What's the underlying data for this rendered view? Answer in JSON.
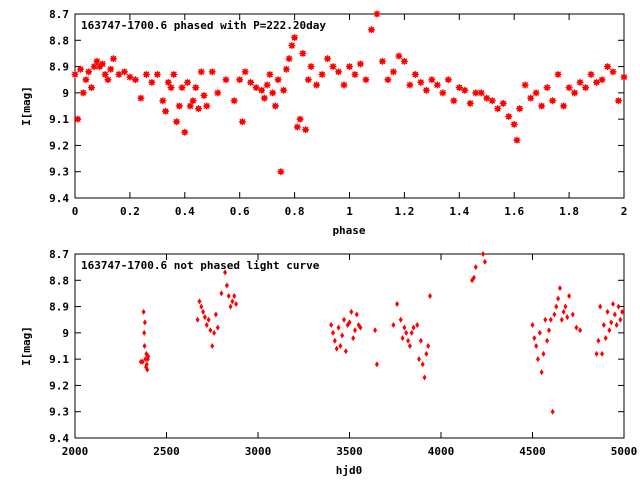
{
  "charts": [
    {
      "title": "163747-1700.6 phased with P=222.20day",
      "xlabel": "phase",
      "ylabel": "I[mag]"
    },
    {
      "title": "163747-1700.6 not phased light curve",
      "xlabel": "hjd0",
      "ylabel": "I[mag]"
    }
  ],
  "colors": {
    "points": "#ff0000",
    "axes": "#000000",
    "background": "#ffffff"
  },
  "chart_data": [
    {
      "type": "scatter",
      "title": "163747-1700.6 phased with P=222.20day",
      "xlabel": "phase",
      "ylabel": "I[mag]",
      "xlim": [
        0,
        2
      ],
      "ylim": [
        9.4,
        8.7
      ],
      "y_inverted": true,
      "grid": false,
      "legend": "none",
      "x_ticks": [
        0,
        0.2,
        0.4,
        0.6,
        0.8,
        1,
        1.2,
        1.4,
        1.6,
        1.8,
        2
      ],
      "x_tick_labels": [
        "0",
        "0.2",
        "0.4",
        "0.6",
        "0.8",
        "1",
        "1.2",
        "1.4",
        "1.6",
        "1.8",
        "2"
      ],
      "y_ticks": [
        8.7,
        8.8,
        8.9,
        9,
        9.1,
        9.2,
        9.3,
        9.4
      ],
      "y_tick_labels": [
        "8.7",
        "8.8",
        "8.9",
        "9",
        "9.1",
        "9.2",
        "9.3",
        "9.4"
      ],
      "marker": "asterisk",
      "series": [
        {
          "x": [
            0.0,
            0.01,
            0.02,
            0.03,
            0.04,
            0.05,
            0.06,
            0.07,
            0.08,
            0.09,
            0.1,
            0.11,
            0.12,
            0.13,
            0.14,
            0.16,
            0.18,
            0.2,
            0.22,
            0.24,
            0.26,
            0.28,
            0.3,
            0.32,
            0.33,
            0.34,
            0.35,
            0.36,
            0.37,
            0.38,
            0.39,
            0.4,
            0.41,
            0.42,
            0.43,
            0.44,
            0.45,
            0.46,
            0.47,
            0.48,
            0.5,
            0.52,
            0.55,
            0.58,
            0.6,
            0.61,
            0.62,
            0.64,
            0.66,
            0.68,
            0.69,
            0.7,
            0.71,
            0.72,
            0.73,
            0.74,
            0.75,
            0.76,
            0.77,
            0.78,
            0.79,
            0.8,
            0.81,
            0.82,
            0.83,
            0.84,
            0.85,
            0.86,
            0.88,
            0.9,
            0.92,
            0.94,
            0.96,
            0.98,
            1.0,
            1.02,
            1.04,
            1.06,
            1.08,
            1.1,
            1.12,
            1.14,
            1.16,
            1.18,
            1.2,
            1.22,
            1.24,
            1.26,
            1.28,
            1.3,
            1.32,
            1.34,
            1.36,
            1.38,
            1.4,
            1.42,
            1.44,
            1.46,
            1.48,
            1.5,
            1.52,
            1.54,
            1.56,
            1.58,
            1.6,
            1.61,
            1.62,
            1.64,
            1.66,
            1.68,
            1.7,
            1.72,
            1.74,
            1.76,
            1.78,
            1.8,
            1.82,
            1.84,
            1.86,
            1.88,
            1.9,
            1.92,
            1.94,
            1.96,
            1.98,
            2.0
          ],
          "y": [
            8.93,
            9.1,
            8.91,
            9.0,
            8.95,
            8.92,
            8.98,
            8.9,
            8.88,
            8.9,
            8.89,
            8.93,
            8.95,
            8.91,
            8.87,
            8.93,
            8.92,
            8.94,
            8.95,
            9.02,
            8.93,
            8.96,
            8.93,
            9.03,
            9.07,
            8.96,
            8.98,
            8.93,
            9.11,
            9.05,
            8.98,
            9.15,
            8.96,
            9.05,
            9.03,
            8.98,
            9.06,
            8.92,
            9.01,
            9.05,
            8.92,
            9.0,
            8.95,
            9.03,
            8.95,
            9.11,
            8.92,
            8.96,
            8.98,
            8.99,
            9.02,
            8.97,
            8.93,
            9.0,
            9.05,
            8.95,
            9.3,
            8.99,
            8.91,
            8.87,
            8.82,
            8.79,
            9.13,
            9.1,
            8.85,
            9.14,
            8.95,
            8.9,
            8.97,
            8.93,
            8.87,
            8.9,
            8.92,
            8.97,
            8.9,
            8.93,
            8.89,
            8.95,
            8.76,
            8.7,
            8.88,
            8.95,
            8.92,
            8.86,
            8.88,
            8.97,
            8.93,
            8.96,
            8.99,
            8.95,
            8.97,
            9.0,
            8.95,
            9.03,
            8.98,
            8.99,
            9.04,
            9.0,
            9.0,
            9.02,
            9.03,
            9.06,
            9.04,
            9.09,
            9.12,
            9.18,
            9.06,
            8.97,
            9.02,
            9.0,
            9.05,
            8.98,
            9.03,
            8.93,
            9.05,
            8.98,
            9.0,
            8.96,
            8.98,
            8.93,
            8.96,
            8.95,
            8.9,
            8.92,
            9.03,
            8.94
          ]
        }
      ]
    },
    {
      "type": "scatter",
      "title": "163747-1700.6 not phased light curve",
      "xlabel": "hjd0",
      "ylabel": "I[mag]",
      "xlim": [
        2000,
        5000
      ],
      "ylim": [
        9.4,
        8.7
      ],
      "y_inverted": true,
      "grid": false,
      "legend": "none",
      "x_ticks": [
        2000,
        2500,
        3000,
        3500,
        4000,
        4500,
        5000
      ],
      "x_tick_labels": [
        "2000",
        "2500",
        "3000",
        "3500",
        "4000",
        "4500",
        "5000"
      ],
      "y_ticks": [
        8.7,
        8.8,
        8.9,
        9,
        9.1,
        9.2,
        9.3,
        9.4
      ],
      "y_tick_labels": [
        "8.7",
        "8.8",
        "8.9",
        "9",
        "9.1",
        "9.2",
        "9.3",
        "9.4"
      ],
      "marker": "diamond",
      "series": [
        {
          "x": [
            2360,
            2370,
            2375,
            2378,
            2380,
            2382,
            2385,
            2388,
            2390,
            2392,
            2395,
            2398,
            2400,
            2670,
            2680,
            2690,
            2700,
            2710,
            2720,
            2730,
            2740,
            2750,
            2760,
            2770,
            2780,
            2800,
            2820,
            2830,
            2840,
            2850,
            2860,
            2870,
            2880,
            3400,
            3410,
            3420,
            3430,
            3440,
            3450,
            3460,
            3470,
            3480,
            3490,
            3500,
            3510,
            3520,
            3530,
            3540,
            3550,
            3560,
            3640,
            3650,
            3740,
            3760,
            3780,
            3790,
            3800,
            3810,
            3820,
            3830,
            3840,
            3850,
            3870,
            3880,
            3890,
            3900,
            3910,
            3920,
            3930,
            3940,
            4170,
            4180,
            4190,
            4230,
            4240,
            4500,
            4510,
            4520,
            4530,
            4540,
            4550,
            4560,
            4570,
            4580,
            4590,
            4600,
            4610,
            4620,
            4630,
            4640,
            4650,
            4660,
            4670,
            4680,
            4690,
            4700,
            4720,
            4740,
            4760,
            4850,
            4860,
            4870,
            4880,
            4890,
            4900,
            4910,
            4920,
            4930,
            4940,
            4950,
            4960,
            4970,
            4980,
            4990
          ],
          "y": [
            9.11,
            9.11,
            8.92,
            9.0,
            9.05,
            8.96,
            9.1,
            9.13,
            9.08,
            9.12,
            9.14,
            9.1,
            9.09,
            8.95,
            8.88,
            8.9,
            8.92,
            8.94,
            8.97,
            8.95,
            8.99,
            9.05,
            9.0,
            8.93,
            8.98,
            8.85,
            8.77,
            8.82,
            8.86,
            8.9,
            8.88,
            8.86,
            8.89,
            8.97,
            9.0,
            9.03,
            9.06,
            8.98,
            9.05,
            9.01,
            8.95,
            9.07,
            8.97,
            8.96,
            8.92,
            9.02,
            8.99,
            8.93,
            8.97,
            8.98,
            8.99,
            9.12,
            8.97,
            8.89,
            8.95,
            9.02,
            8.98,
            9.0,
            9.03,
            9.05,
            9.0,
            8.98,
            8.97,
            9.1,
            9.03,
            9.12,
            9.17,
            9.08,
            9.05,
            8.86,
            8.8,
            8.79,
            8.75,
            8.7,
            8.73,
            8.97,
            9.02,
            9.05,
            9.1,
            9.0,
            9.15,
            9.08,
            8.95,
            9.03,
            8.99,
            8.95,
            9.3,
            8.93,
            8.9,
            8.87,
            8.83,
            8.95,
            8.92,
            8.9,
            8.94,
            8.86,
            8.93,
            8.98,
            8.99,
            9.08,
            9.03,
            8.9,
            9.08,
            8.97,
            9.02,
            8.92,
            8.99,
            8.96,
            8.89,
            8.93,
            8.97,
            8.9,
            8.95,
            8.92
          ]
        }
      ]
    }
  ]
}
